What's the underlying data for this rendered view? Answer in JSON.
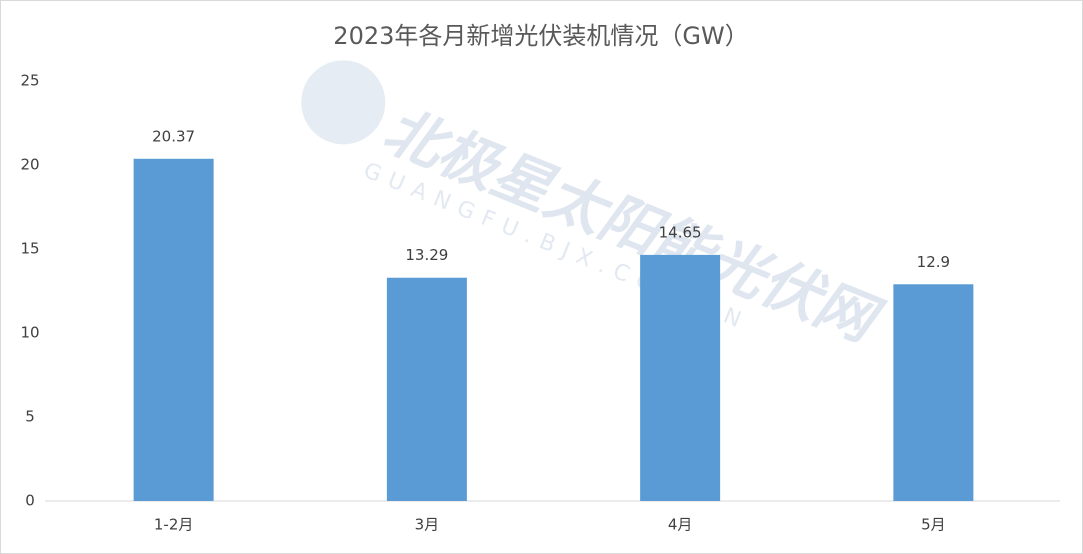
{
  "chart_data": {
    "type": "bar",
    "title": "2023年各月新增光伏装机情况（GW）",
    "categories": [
      "1-2月",
      "3月",
      "4月",
      "5月"
    ],
    "values": [
      20.37,
      13.29,
      14.65,
      12.9
    ],
    "color": "#5b9bd5",
    "ylim": [
      0,
      25
    ],
    "yticks": [
      0,
      5,
      10,
      15,
      20,
      25
    ],
    "grid": false,
    "watermark": [
      "北极星太阳能光伏网",
      "GUANGFU.BJX.COM.CN"
    ]
  }
}
